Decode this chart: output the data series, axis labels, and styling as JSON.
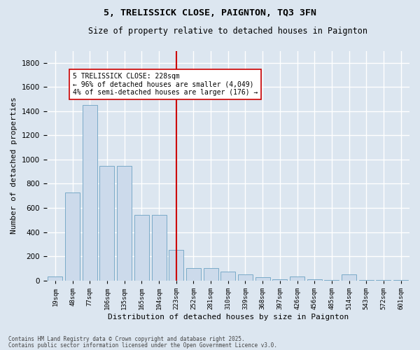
{
  "title_line1": "5, TRELISSICK CLOSE, PAIGNTON, TQ3 3FN",
  "title_line2": "Size of property relative to detached houses in Paignton",
  "xlabel": "Distribution of detached houses by size in Paignton",
  "ylabel": "Number of detached properties",
  "categories": [
    "19sqm",
    "48sqm",
    "77sqm",
    "106sqm",
    "135sqm",
    "165sqm",
    "194sqm",
    "223sqm",
    "252sqm",
    "281sqm",
    "310sqm",
    "339sqm",
    "368sqm",
    "397sqm",
    "426sqm",
    "456sqm",
    "485sqm",
    "514sqm",
    "543sqm",
    "572sqm",
    "601sqm"
  ],
  "values": [
    30,
    730,
    1450,
    950,
    950,
    540,
    540,
    250,
    100,
    100,
    75,
    50,
    25,
    10,
    30,
    10,
    5,
    50,
    5,
    5,
    2
  ],
  "bar_color": "#ccdaeb",
  "bar_edge_color": "#7aaac8",
  "vline_color": "#cc0000",
  "ylim": [
    0,
    1900
  ],
  "yticks": [
    0,
    200,
    400,
    600,
    800,
    1000,
    1200,
    1400,
    1600,
    1800
  ],
  "annotation_text": "5 TRELISSICK CLOSE: 228sqm\n← 96% of detached houses are smaller (4,049)\n4% of semi-detached houses are larger (176) →",
  "annotation_box_color": "#ffffff",
  "annotation_box_edge_color": "#cc0000",
  "footer_line1": "Contains HM Land Registry data © Crown copyright and database right 2025.",
  "footer_line2": "Contains public sector information licensed under the Open Government Licence v3.0.",
  "background_color": "#dce6f0",
  "plot_bg_color": "#dce6f0",
  "grid_color": "#ffffff",
  "vline_index": 7
}
